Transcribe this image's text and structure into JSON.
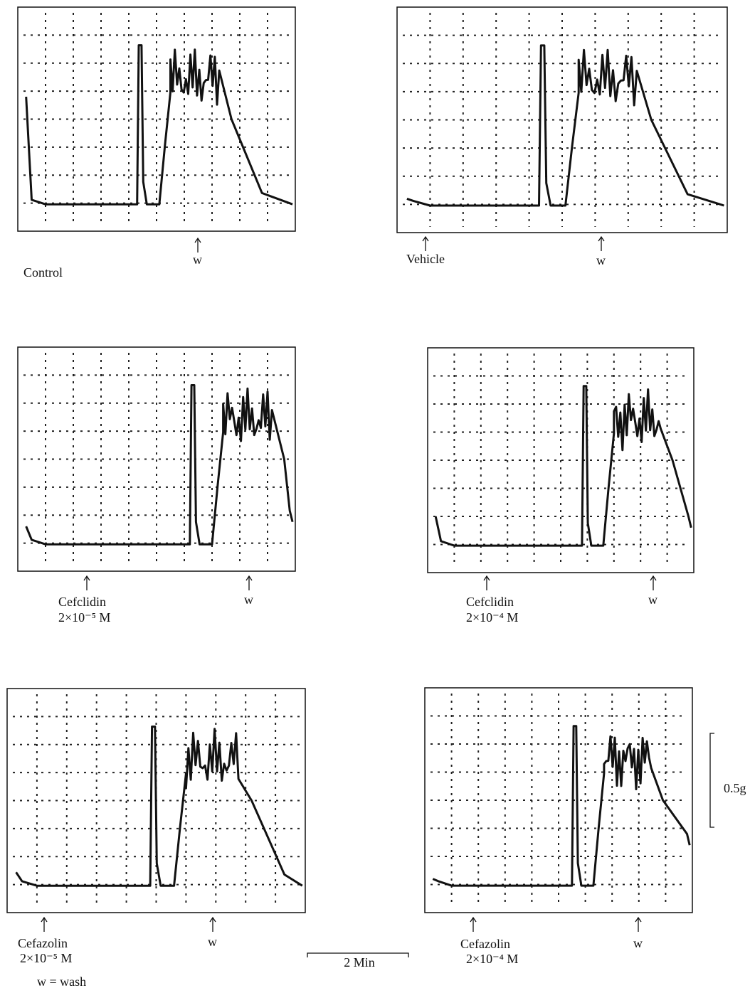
{
  "panels": [
    {
      "label": "Control",
      "wash": "w"
    },
    {
      "label": "Vehicle",
      "wash": "w"
    },
    {
      "drug": "Cefclidin",
      "concentration": "2×10⁻⁵ M",
      "wash": "w"
    },
    {
      "drug": "Cefclidin",
      "concentration": "2×10⁻⁴ M",
      "wash": "w"
    },
    {
      "drug": "Cefazolin",
      "concentration": "2×10⁻⁵ M",
      "wash": "w"
    },
    {
      "drug": "Cefazolin",
      "concentration": "2×10⁻⁴ M",
      "wash": "w"
    }
  ],
  "scale": {
    "time": "2 Min",
    "force": "0.5g"
  },
  "legend": "w = wash"
}
